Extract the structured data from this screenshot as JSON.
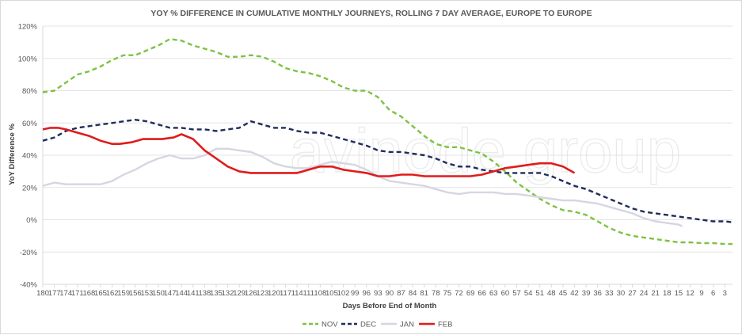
{
  "chart_data": {
    "type": "line",
    "title": "YOY % DIFFERENCE  IN CUMULATIVE MONTHLY JOURNEYS, ROLLING 7 DAY AVERAGE, EUROPE TO EUROPE",
    "xlabel": "Days Before End of Month",
    "ylabel": "YoY Difference %",
    "ylim": [
      -40,
      120
    ],
    "y_ticks": [
      "-40%",
      "-20%",
      "0%",
      "20%",
      "40%",
      "60%",
      "80%",
      "100%",
      "120%"
    ],
    "x_ticks": [
      "180",
      "177",
      "174",
      "171",
      "168",
      "165",
      "162",
      "159",
      "156",
      "153",
      "150",
      "147",
      "144",
      "141",
      "138",
      "135",
      "132",
      "129",
      "126",
      "123",
      "120",
      "117",
      "114",
      "111",
      "108",
      "105",
      "102",
      "99",
      "96",
      "93",
      "90",
      "87",
      "84",
      "81",
      "78",
      "75",
      "72",
      "69",
      "66",
      "63",
      "60",
      "57",
      "54",
      "51",
      "48",
      "45",
      "42",
      "39",
      "36",
      "33",
      "30",
      "27",
      "24",
      "21",
      "18",
      "15",
      "12",
      "9",
      "6",
      "3"
    ],
    "x_reversed": true,
    "grid": true,
    "legend_position": "bottom",
    "watermark": "avinode group",
    "series": [
      {
        "name": "NOV",
        "color": "#7dc242",
        "dash": "dashed",
        "points": [
          [
            180,
            79
          ],
          [
            177,
            80
          ],
          [
            174,
            85
          ],
          [
            171,
            90
          ],
          [
            168,
            92
          ],
          [
            165,
            95
          ],
          [
            162,
            99
          ],
          [
            159,
            102
          ],
          [
            156,
            102
          ],
          [
            153,
            105
          ],
          [
            150,
            108
          ],
          [
            147,
            112
          ],
          [
            144,
            111
          ],
          [
            141,
            108
          ],
          [
            138,
            106
          ],
          [
            135,
            104
          ],
          [
            132,
            101
          ],
          [
            129,
            101
          ],
          [
            126,
            102
          ],
          [
            123,
            101
          ],
          [
            120,
            98
          ],
          [
            117,
            94
          ],
          [
            114,
            92
          ],
          [
            111,
            91
          ],
          [
            108,
            89
          ],
          [
            105,
            86
          ],
          [
            102,
            82
          ],
          [
            99,
            80
          ],
          [
            96,
            80
          ],
          [
            93,
            76
          ],
          [
            90,
            68
          ],
          [
            87,
            64
          ],
          [
            84,
            58
          ],
          [
            81,
            52
          ],
          [
            78,
            47
          ],
          [
            75,
            45
          ],
          [
            72,
            45
          ],
          [
            69,
            43
          ],
          [
            66,
            41
          ],
          [
            63,
            36
          ],
          [
            60,
            30
          ],
          [
            57,
            23
          ],
          [
            54,
            18
          ],
          [
            51,
            13
          ],
          [
            48,
            9
          ],
          [
            45,
            6
          ],
          [
            42,
            5
          ],
          [
            39,
            3
          ],
          [
            36,
            -1
          ],
          [
            33,
            -5
          ],
          [
            30,
            -8
          ],
          [
            27,
            -10
          ],
          [
            24,
            -11
          ],
          [
            21,
            -12
          ],
          [
            18,
            -13
          ],
          [
            15,
            -14
          ],
          [
            12,
            -14
          ],
          [
            9,
            -14.5
          ],
          [
            6,
            -14.5
          ],
          [
            3,
            -15
          ],
          [
            1,
            -15
          ]
        ]
      },
      {
        "name": "DEC",
        "color": "#1f2d5a",
        "dash": "dashed",
        "points": [
          [
            180,
            49
          ],
          [
            177,
            51
          ],
          [
            174,
            55
          ],
          [
            171,
            57
          ],
          [
            168,
            58
          ],
          [
            165,
            59
          ],
          [
            162,
            60
          ],
          [
            159,
            61
          ],
          [
            156,
            62
          ],
          [
            153,
            61
          ],
          [
            150,
            59
          ],
          [
            147,
            57
          ],
          [
            144,
            57
          ],
          [
            141,
            56
          ],
          [
            138,
            56
          ],
          [
            135,
            55
          ],
          [
            132,
            56
          ],
          [
            129,
            57
          ],
          [
            126,
            61
          ],
          [
            123,
            59
          ],
          [
            120,
            57
          ],
          [
            117,
            57
          ],
          [
            114,
            55
          ],
          [
            111,
            54
          ],
          [
            108,
            54
          ],
          [
            105,
            52
          ],
          [
            102,
            50
          ],
          [
            99,
            48
          ],
          [
            96,
            46
          ],
          [
            93,
            43
          ],
          [
            90,
            42
          ],
          [
            87,
            42
          ],
          [
            84,
            41
          ],
          [
            81,
            40
          ],
          [
            78,
            38
          ],
          [
            75,
            35
          ],
          [
            72,
            33
          ],
          [
            69,
            33
          ],
          [
            66,
            31
          ],
          [
            63,
            30
          ],
          [
            60,
            29
          ],
          [
            57,
            29
          ],
          [
            54,
            29
          ],
          [
            51,
            29
          ],
          [
            48,
            27
          ],
          [
            45,
            24
          ],
          [
            42,
            21
          ],
          [
            39,
            19
          ],
          [
            36,
            16
          ],
          [
            33,
            13
          ],
          [
            30,
            10
          ],
          [
            27,
            7
          ],
          [
            24,
            5
          ],
          [
            21,
            4
          ],
          [
            18,
            3
          ],
          [
            15,
            2
          ],
          [
            12,
            1
          ],
          [
            9,
            0
          ],
          [
            6,
            -1
          ],
          [
            3,
            -1
          ],
          [
            1,
            -1.5
          ]
        ]
      },
      {
        "name": "JAN",
        "color": "#d6d6e3",
        "dash": "solid",
        "points": [
          [
            180,
            21
          ],
          [
            177,
            23
          ],
          [
            174,
            22
          ],
          [
            171,
            22
          ],
          [
            168,
            22
          ],
          [
            165,
            22
          ],
          [
            162,
            24
          ],
          [
            159,
            28
          ],
          [
            156,
            31
          ],
          [
            153,
            35
          ],
          [
            150,
            38
          ],
          [
            147,
            40
          ],
          [
            144,
            38
          ],
          [
            141,
            38
          ],
          [
            138,
            40
          ],
          [
            135,
            44
          ],
          [
            132,
            44
          ],
          [
            129,
            43
          ],
          [
            126,
            42
          ],
          [
            123,
            39
          ],
          [
            120,
            35
          ],
          [
            117,
            33
          ],
          [
            114,
            32
          ],
          [
            111,
            32
          ],
          [
            108,
            34
          ],
          [
            105,
            36
          ],
          [
            102,
            35
          ],
          [
            99,
            34
          ],
          [
            96,
            31
          ],
          [
            93,
            27
          ],
          [
            90,
            24
          ],
          [
            87,
            23
          ],
          [
            84,
            22
          ],
          [
            81,
            21
          ],
          [
            78,
            19
          ],
          [
            75,
            17
          ],
          [
            72,
            16
          ],
          [
            69,
            17
          ],
          [
            66,
            17
          ],
          [
            63,
            17
          ],
          [
            60,
            16
          ],
          [
            57,
            16
          ],
          [
            54,
            15
          ],
          [
            51,
            14
          ],
          [
            48,
            13
          ],
          [
            45,
            12
          ],
          [
            42,
            12
          ],
          [
            39,
            11
          ],
          [
            36,
            10
          ],
          [
            33,
            8
          ],
          [
            30,
            6
          ],
          [
            27,
            4
          ],
          [
            24,
            1
          ],
          [
            21,
            -1
          ],
          [
            18,
            -2
          ],
          [
            15,
            -3
          ],
          [
            14,
            -4
          ]
        ]
      },
      {
        "name": "FEB",
        "color": "#e01b1b",
        "dash": "solid",
        "points": [
          [
            180,
            56
          ],
          [
            178,
            57
          ],
          [
            176,
            57
          ],
          [
            174,
            56
          ],
          [
            171,
            54
          ],
          [
            168,
            52
          ],
          [
            165,
            49
          ],
          [
            162,
            47
          ],
          [
            160,
            47
          ],
          [
            157,
            48
          ],
          [
            154,
            50
          ],
          [
            152,
            50
          ],
          [
            149,
            50
          ],
          [
            146,
            51
          ],
          [
            144,
            53
          ],
          [
            141,
            50
          ],
          [
            138,
            43
          ],
          [
            135,
            38
          ],
          [
            132,
            33
          ],
          [
            129,
            30
          ],
          [
            126,
            29
          ],
          [
            123,
            29
          ],
          [
            120,
            29
          ],
          [
            117,
            29
          ],
          [
            114,
            29
          ],
          [
            111,
            31
          ],
          [
            108,
            33
          ],
          [
            105,
            33
          ],
          [
            102,
            31
          ],
          [
            99,
            30
          ],
          [
            96,
            29
          ],
          [
            93,
            27
          ],
          [
            90,
            27
          ],
          [
            87,
            28
          ],
          [
            84,
            28
          ],
          [
            81,
            27
          ],
          [
            78,
            27
          ],
          [
            75,
            27
          ],
          [
            72,
            27
          ],
          [
            69,
            27
          ],
          [
            66,
            28
          ],
          [
            63,
            30
          ],
          [
            60,
            32
          ],
          [
            57,
            33
          ],
          [
            54,
            34
          ],
          [
            51,
            35
          ],
          [
            48,
            35
          ],
          [
            45,
            33
          ],
          [
            42,
            29
          ]
        ]
      }
    ]
  }
}
